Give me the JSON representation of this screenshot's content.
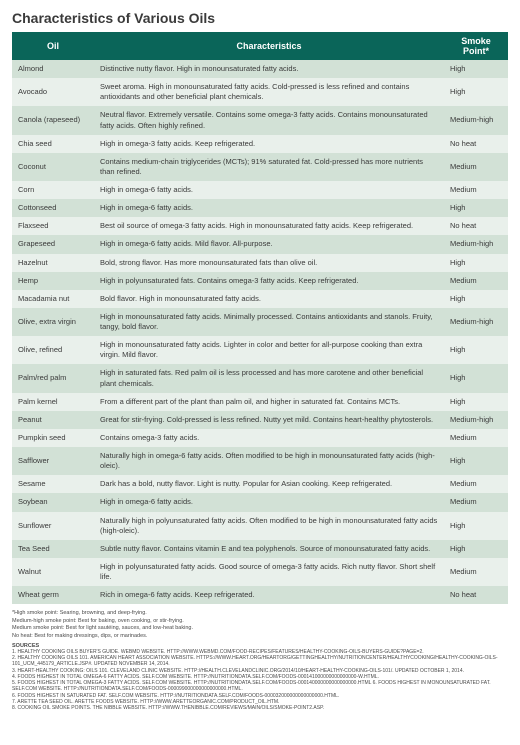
{
  "title": "Characteristics of Various Oils",
  "columns": [
    "Oil",
    "Characteristics",
    "Smoke Point*"
  ],
  "rows": [
    {
      "oil": "Almond",
      "char": "Distinctive nutty flavor. High in monounsaturated fatty acids.",
      "smoke": "High"
    },
    {
      "oil": "Avocado",
      "char": "Sweet aroma. High in monounsaturated fatty acids. Cold-pressed is less refined and contains antioxidants and other beneficial plant chemicals.",
      "smoke": "High"
    },
    {
      "oil": "Canola (rapeseed)",
      "char": "Neutral flavor. Extremely versatile. Contains some omega-3 fatty acids. Contains monounsaturated fatty acids. Often highly refined.",
      "smoke": "Medium-high"
    },
    {
      "oil": "Chia seed",
      "char": "High in omega-3 fatty acids. Keep refrigerated.",
      "smoke": "No heat"
    },
    {
      "oil": "Coconut",
      "char": "Contains medium-chain triglycerides (MCTs); 91% saturated fat. Cold-pressed has more nutrients than refined.",
      "smoke": "Medium"
    },
    {
      "oil": "Corn",
      "char": "High in omega-6 fatty acids.",
      "smoke": "Medium"
    },
    {
      "oil": "Cottonseed",
      "char": "High in omega-6 fatty acids.",
      "smoke": "High"
    },
    {
      "oil": "Flaxseed",
      "char": "Best oil source of omega-3 fatty acids. High in monounsaturated fatty acids. Keep refrigerated.",
      "smoke": "No heat"
    },
    {
      "oil": "Grapeseed",
      "char": "High in omega-6 fatty acids. Mild flavor. All-purpose.",
      "smoke": "Medium-high"
    },
    {
      "oil": "Hazelnut",
      "char": "Bold, strong flavor. Has more monounsaturated fats than olive oil.",
      "smoke": "High"
    },
    {
      "oil": "Hemp",
      "char": "High in polyunsaturated fats. Contains omega-3 fatty acids. Keep refrigerated.",
      "smoke": "Medium"
    },
    {
      "oil": "Macadamia nut",
      "char": "Bold flavor. High in monounsaturated fatty acids.",
      "smoke": "High"
    },
    {
      "oil": "Olive, extra virgin",
      "char": "High in monounsaturated fatty acids. Minimally processed. Contains antioxidants and stanols. Fruity, tangy, bold flavor.",
      "smoke": "Medium-high"
    },
    {
      "oil": "Olive, refined",
      "char": "High in monounsaturated fatty acids. Lighter in color and better for all-purpose cooking than extra virgin. Mild flavor.",
      "smoke": "High"
    },
    {
      "oil": "Palm/red palm",
      "char": "High in saturated fats. Red palm oil is less processed and has more carotene and other beneficial plant chemicals.",
      "smoke": "High"
    },
    {
      "oil": "Palm kernel",
      "char": "From a different part of the plant than palm oil, and higher in saturated fat. Contains MCTs.",
      "smoke": "High"
    },
    {
      "oil": "Peanut",
      "char": "Great for stir-frying. Cold-pressed is less refined. Nutty yet mild. Contains heart-healthy phytosterols.",
      "smoke": "Medium-high"
    },
    {
      "oil": "Pumpkin seed",
      "char": "Contains omega-3 fatty acids.",
      "smoke": "Medium"
    },
    {
      "oil": "Safflower",
      "char": "Naturally high in omega-6 fatty acids. Often modified to be high in monounsaturated fatty acids (high-oleic).",
      "smoke": "High"
    },
    {
      "oil": "Sesame",
      "char": "Dark has a bold, nutty flavor. Light is nutty. Popular for Asian cooking. Keep refrigerated.",
      "smoke": "Medium"
    },
    {
      "oil": "Soybean",
      "char": "High in omega-6 fatty acids.",
      "smoke": "Medium"
    },
    {
      "oil": "Sunflower",
      "char": "Naturally high in polyunsaturated fatty acids. Often modified to be high in monounsaturated fatty acids (high-oleic).",
      "smoke": "High"
    },
    {
      "oil": "Tea Seed",
      "char": "Subtle nutty flavor. Contains vitamin E and tea polyphenols. Source of monounsaturated fatty acids.",
      "smoke": "High"
    },
    {
      "oil": "Walnut",
      "char": "High in polyunsaturated fatty acids. Good source of omega-3 fatty acids. Rich nutty flavor. Short shelf life.",
      "smoke": "Medium"
    },
    {
      "oil": "Wheat germ",
      "char": "Rich in omega-6 fatty acids. Keep refrigerated.",
      "smoke": "No heat"
    }
  ],
  "notes": [
    "*High smoke point: Searing, browning, and deep-frying.",
    "Medium-high smoke point: Best for baking, oven cooking, or stir-frying.",
    "Medium smoke point: Best for light sautéing, sauces, and low-heat baking.",
    "No heat: Best for making dressings, dips, or marinades."
  ],
  "sources_heading": "SOURCES",
  "sources": [
    "1. HEALTHY COOKING OILS BUYER'S GUIDE. WEBMD WEBSITE. HTTP://WWW.WEBMD.COM/FOOD-RECIPES/FEATURES/HEALTHY-COOKING-OILS-BUYERS-GUIDE?PAGE=2.",
    "2. HEALTHY COOKING OILS 101. AMERICAN HEART ASSOCIATION WEBSITE. HTTPS://WWW.HEART.ORG/HEARTORG/GETTINGHEALTHY/NUTRITIONCENTER/HEALTHYCOOKING/HEALTHY-COOKING-OILS-101_UCM_445179_ARTICLE.JSP#. UPDATED NOVEMBER 14, 2014.",
    "3. HEART-HEALTHY COOKING: OILS 101. CLEVELAND CLINIC WEBSITE. HTTP://HEALTH.CLEVELANDCLINIC.ORG/2014/10/HEART-HEALTHY-COOKING-OILS-101/. UPDATED OCTOBER 1, 2014.",
    "4. FOODS HIGHEST IN TOTAL OMEGA-6 FATTY ACIDS. SELF.COM WEBSITE. HTTP://NUTRITIONDATA.SELF.COM/FOODS-000141000000000000000-W.HTML.",
    "5. FOODS HIGHEST IN TOTAL OMEGA-3 FATTY ACIDS. SELF.COM WEBSITE. HTTP://NUTRITIONDATA.SELF.COM/FOODS-000140000000000000000.HTML 6. FOODS HIGHEST IN MONOUNSATURATED FAT. SELF.COM WEBSITE. HTTP://NUTRITIONDATA.SELF.COM/FOODS-000099000000000000000.HTML.",
    "6. FOODS HIGHEST IN SATURATED FAT. SELF.COM WEBSITE. HTTP://NUTRITIONDATA.SELF.COM/FOODS-000032000000000000000.HTML.",
    "7. ARETTE TEA SEED OIL. ARETTE FOODS WEBSITE. HTTP://WWW.ARETTEORGANIC.COM/PRODUCT_OIL.HTM.",
    "8. COOKING OIL SMOKE POINTS. THE NIBBLE WEBSITE. HTTP://WWW.THENIBBLE.COM/REVIEWS/MAIN/OILS/SMOKE-POINT2.ASP."
  ],
  "colors": {
    "header_bg": "#0a6559",
    "row_even": "#d2e1d6",
    "row_odd": "#e9f0eb"
  }
}
